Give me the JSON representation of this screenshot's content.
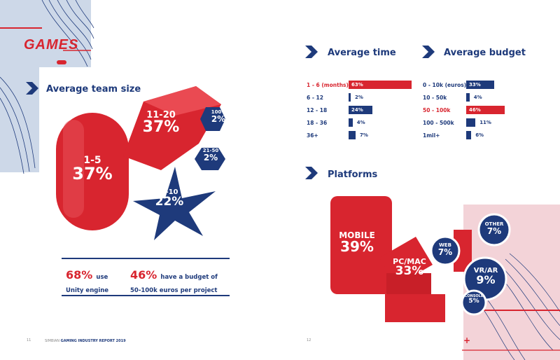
{
  "left_page": {
    "logo_text": "GAMES",
    "team_heading": "Average team size",
    "team": [
      {
        "range": "1-5",
        "pct": "37%"
      },
      {
        "range": "11-20",
        "pct": "37%"
      },
      {
        "range": "100+",
        "pct": "2%"
      },
      {
        "range": "21-50",
        "pct": "2%"
      },
      {
        "range": "6-10",
        "pct": "22%"
      }
    ],
    "stat1_big": "68%",
    "stat1_text_a": "use",
    "stat1_text_b": "Unity engine",
    "stat2_big": "46%",
    "stat2_text_a": "have a budget of",
    "stat2_text_b": "50-100k euros per project",
    "page_number": "11",
    "footer_brand": "SIMBIAN",
    "footer_title": "GAMING INDUSTRY REPORT 2019"
  },
  "right_page": {
    "time_heading": "Average time",
    "time_rows": [
      {
        "label": "1 - 6 (months)",
        "value": 63,
        "display": "63%",
        "highlight": true
      },
      {
        "label": "6 - 12",
        "value": 2,
        "display": "2%",
        "highlight": false
      },
      {
        "label": "12 - 18",
        "value": 24,
        "display": "24%",
        "highlight": false
      },
      {
        "label": "18 - 36",
        "value": 4,
        "display": "4%",
        "highlight": false
      },
      {
        "label": "36+",
        "value": 7,
        "display": "7%",
        "highlight": false
      }
    ],
    "budget_heading": "Average budget",
    "budget_rows": [
      {
        "label": "0 - 10k (euros)",
        "value": 33,
        "display": "33%",
        "highlight": false
      },
      {
        "label": "10 - 50k",
        "value": 4,
        "display": "4%",
        "highlight": false
      },
      {
        "label": "50 - 100k",
        "value": 46,
        "display": "46%",
        "highlight": true
      },
      {
        "label": "100 - 500k",
        "value": 11,
        "display": "11%",
        "highlight": false
      },
      {
        "label": "1mil+",
        "value": 6,
        "display": "6%",
        "highlight": false
      }
    ],
    "platforms_heading": "Platforms",
    "platforms": [
      {
        "name": "MOBILE",
        "pct": "39%"
      },
      {
        "name": "PC/MAC",
        "pct": "33%"
      },
      {
        "name": "WEB",
        "pct": "7%"
      },
      {
        "name": "OTHER",
        "pct": "7%"
      },
      {
        "name": "VR/AR",
        "pct": "9%"
      },
      {
        "name": "CONSOLE",
        "pct": "5%"
      }
    ],
    "page_number": "12"
  },
  "colors": {
    "navy": "#1e3a7b",
    "red": "#d8252f",
    "light_blue": "#cdd8e8",
    "light_pink": "#f3d3d8"
  }
}
